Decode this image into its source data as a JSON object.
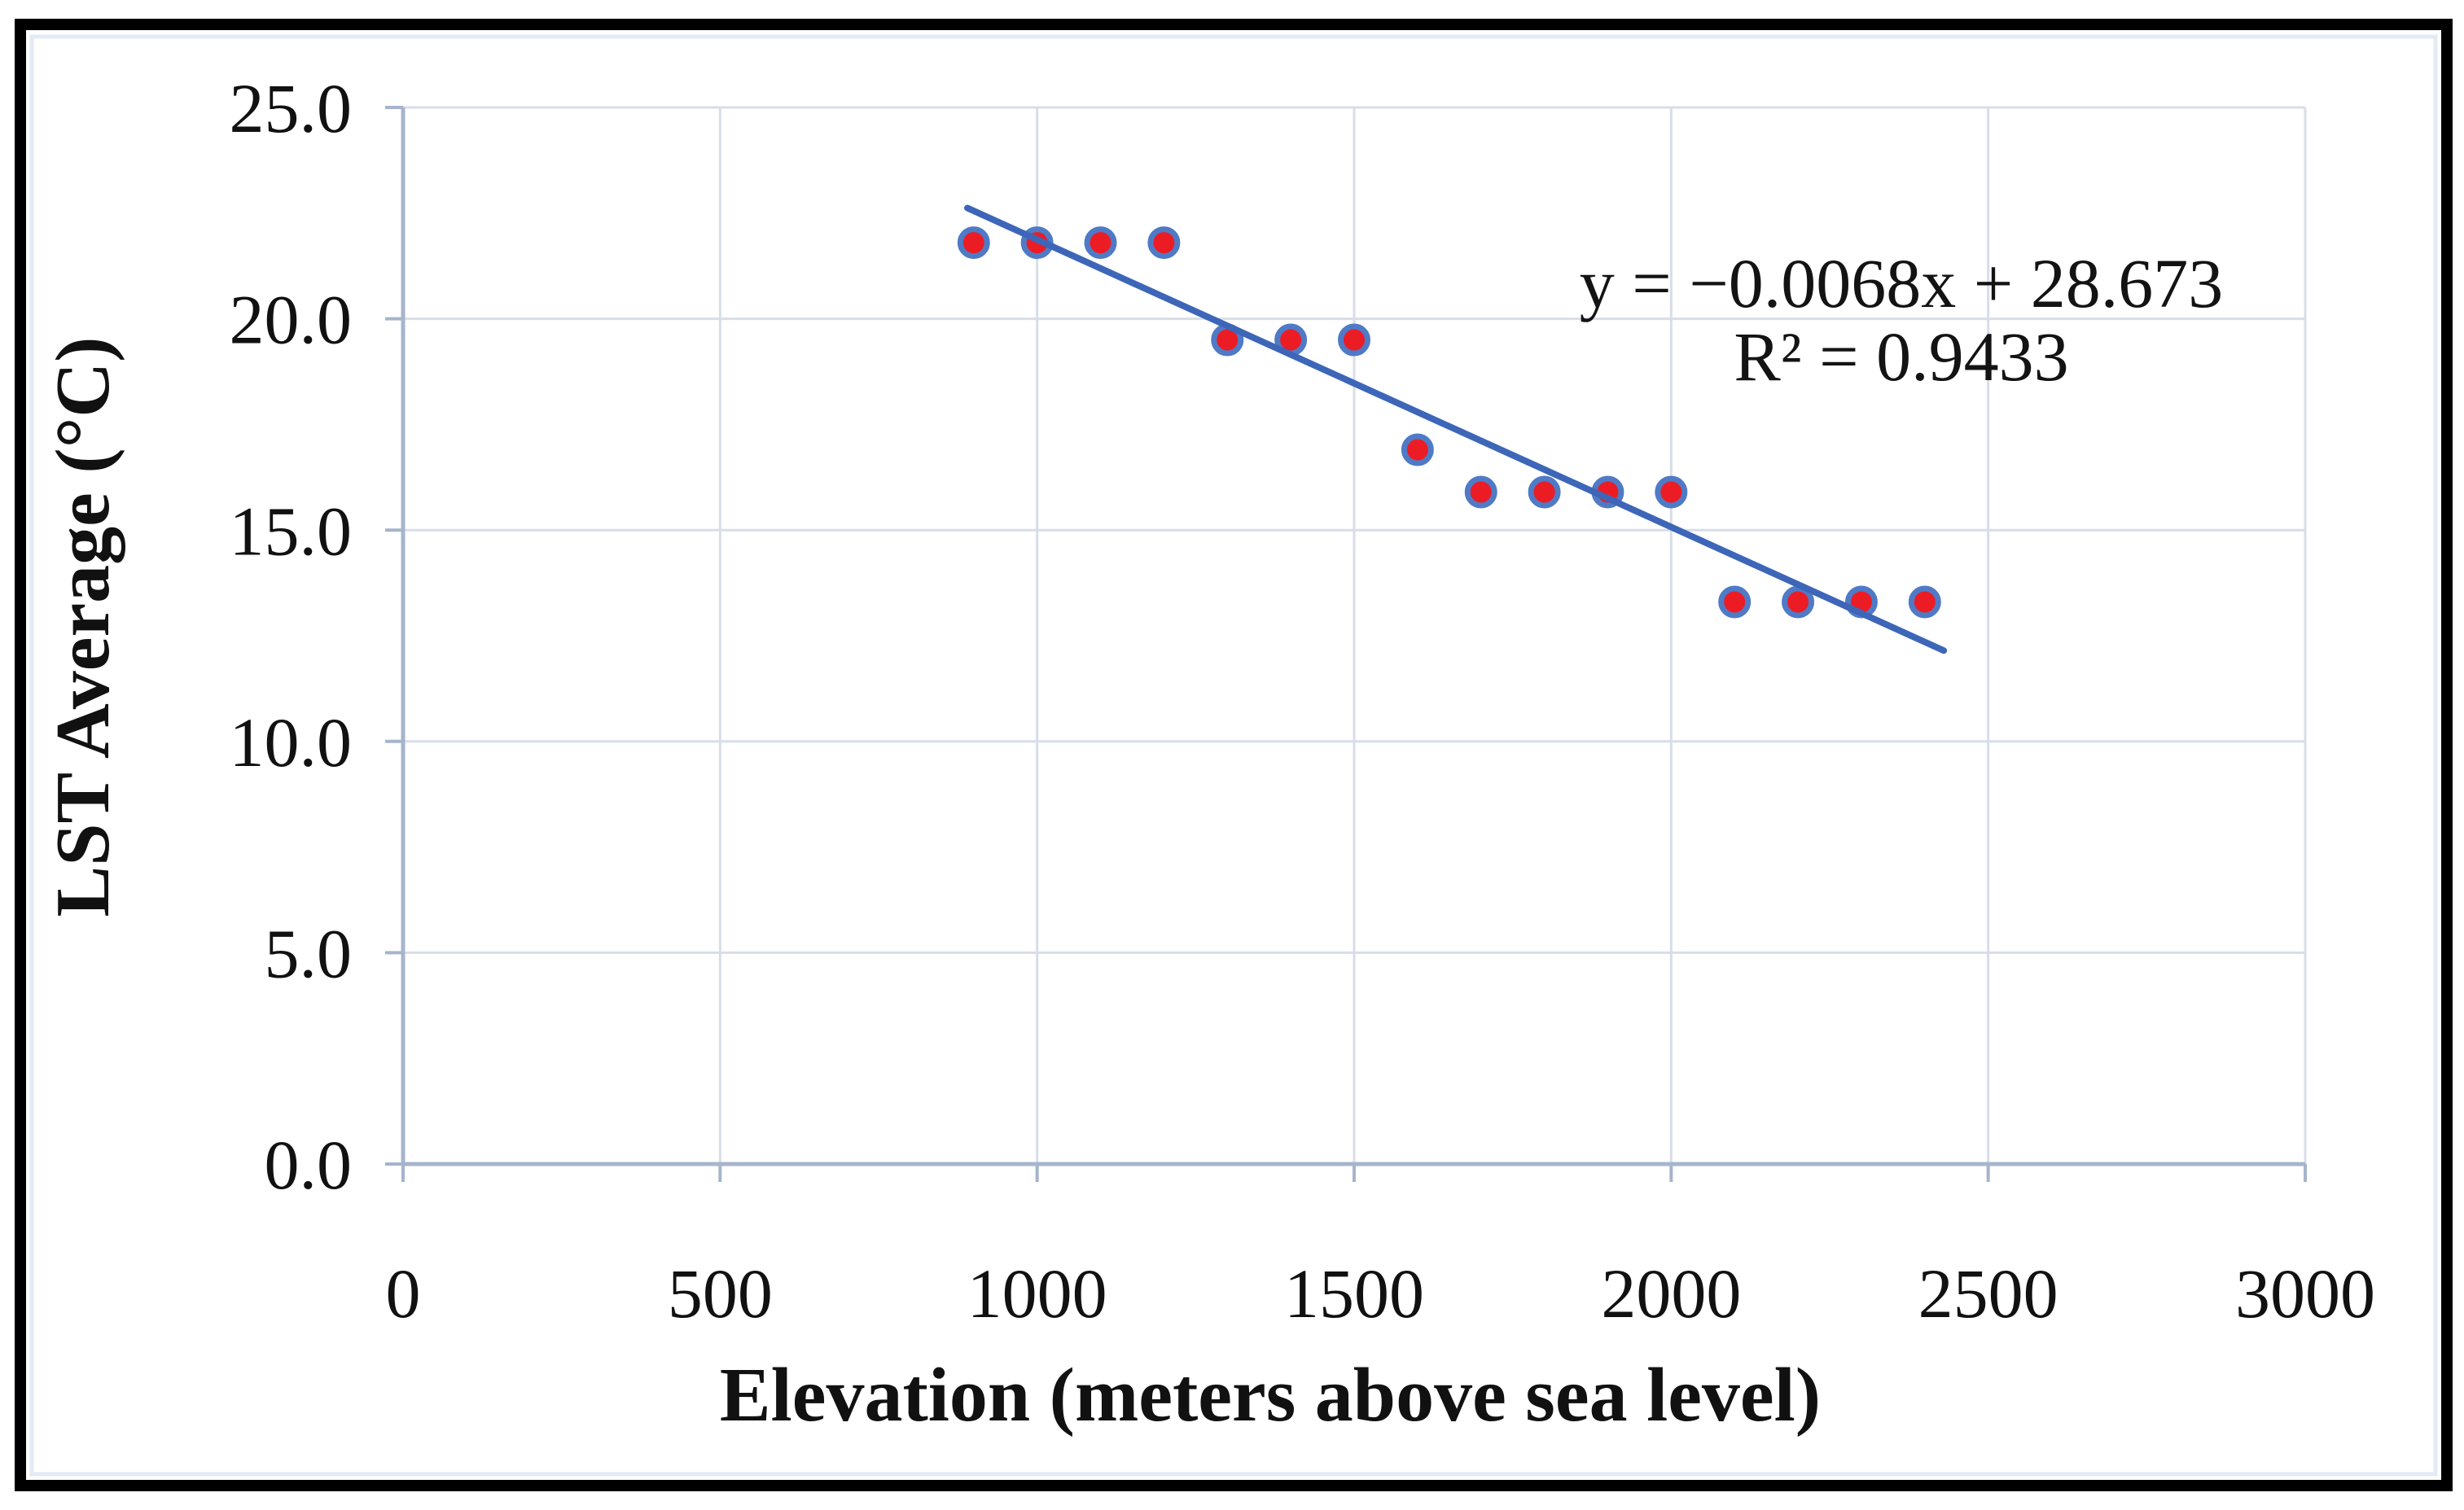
{
  "chart_data": {
    "type": "scatter",
    "title": "",
    "xlabel": "Elevation (meters above sea level)",
    "ylabel": "LST Average (°C)",
    "xlim": [
      0,
      3000
    ],
    "ylim": [
      0,
      25
    ],
    "grid": true,
    "legend": "none",
    "x_ticks": [
      0,
      500,
      1000,
      1500,
      2000,
      2500,
      3000
    ],
    "x_tick_labels": [
      "0",
      "500",
      "1000",
      "1500",
      "2000",
      "2500",
      "3000"
    ],
    "y_ticks": [
      0,
      5,
      10,
      15,
      20,
      25
    ],
    "y_tick_labels": [
      "0.0",
      "5.0",
      "10.0",
      "15.0",
      "20.0",
      "25.0"
    ],
    "series": [
      {
        "name": "LST Average",
        "points": [
          [
            900,
            21.8
          ],
          [
            1000,
            21.8
          ],
          [
            1100,
            21.8
          ],
          [
            1200,
            21.8
          ],
          [
            1300,
            19.5
          ],
          [
            1400,
            19.5
          ],
          [
            1500,
            19.5
          ],
          [
            1600,
            16.9
          ],
          [
            1700,
            15.9
          ],
          [
            1800,
            15.9
          ],
          [
            1900,
            15.9
          ],
          [
            2000,
            15.9
          ],
          [
            2100,
            13.3
          ],
          [
            2200,
            13.3
          ],
          [
            2300,
            13.3
          ],
          [
            2400,
            13.3
          ]
        ]
      }
    ],
    "trendline": {
      "slope": -0.0068,
      "intercept": 28.673,
      "x_start": 890,
      "x_end": 2430
    },
    "annotation": {
      "line1": "y = −0.0068x + 28.673",
      "line2": "R² = 0.9433"
    },
    "colors": {
      "marker_fill": "#ec1c24",
      "marker_stroke": "#4f7ac6",
      "trendline": "#3d66b8",
      "gridline": "#d8dde8",
      "axis_line": "#a6b4cc",
      "text": "#111111",
      "frame": "#000000"
    }
  }
}
